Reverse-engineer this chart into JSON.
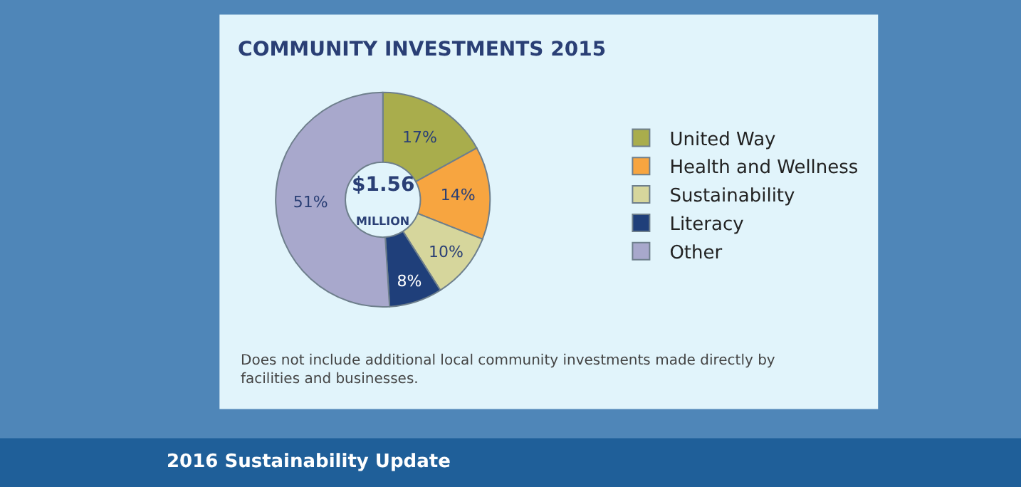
{
  "chart_data": {
    "type": "donut",
    "title": "COMMUNITY INVESTMENTS 2015",
    "categories": [
      "United Way",
      "Health and Wellness",
      "Sustainability",
      "Literacy",
      "Other"
    ],
    "values": [
      17,
      14,
      10,
      8,
      51
    ],
    "colors": [
      "#a9ad4c",
      "#f7a540",
      "#d6d69c",
      "#1f3f7a",
      "#a8a8cc"
    ],
    "value_labels": [
      "17%",
      "14%",
      "10%",
      "8%",
      "51%"
    ],
    "legend": "right",
    "annotations": [
      "$1.56",
      "MILLION",
      "Does not include additional local community investments made directly by facilities and businesses.",
      "2016 Sustainability Update"
    ]
  }
}
